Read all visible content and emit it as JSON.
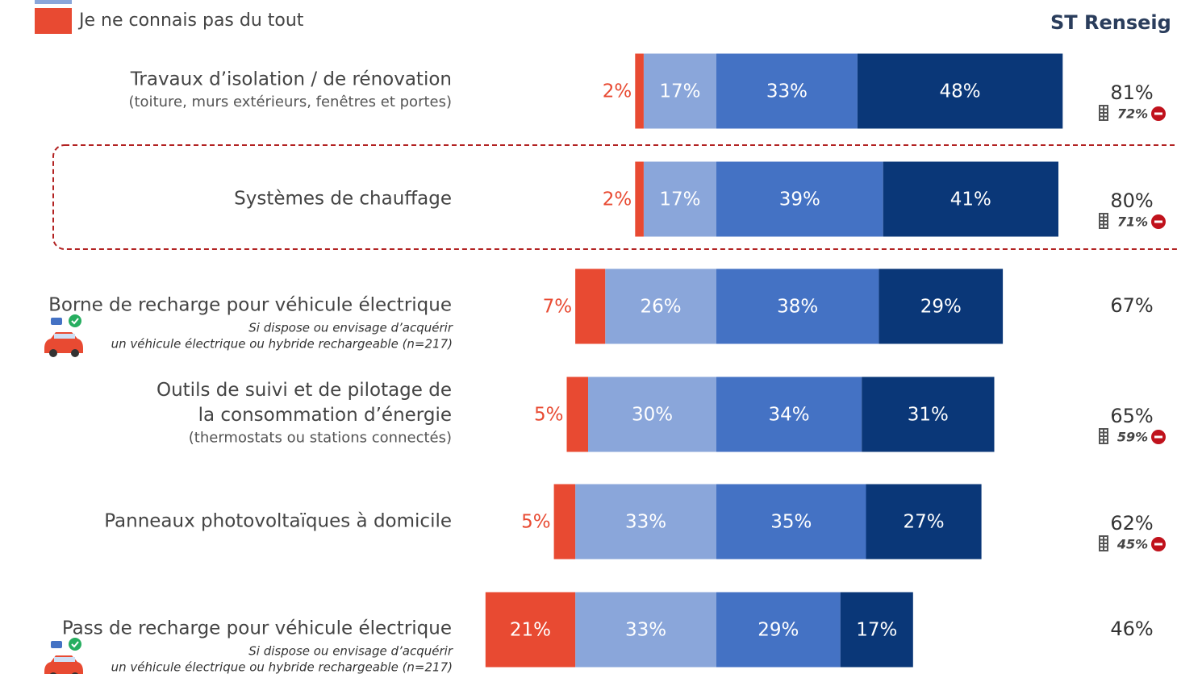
{
  "chart_data": {
    "type": "diverging_bar",
    "legend_entry": "Je ne connais pas du tout",
    "right_header": "ST Renseig",
    "categories": [
      [
        "Travaux d’isolation / de rénovation"
      ],
      [
        "Systèmes de chauffage"
      ],
      [
        "Borne de recharge pour véhicule électrique"
      ],
      [
        "Outils de suivi et de pilotage de",
        "la consommation d’énergie"
      ],
      [
        "Panneaux photovoltaïques à domicile"
      ],
      [
        "Pass de recharge pour véhicule électrique"
      ]
    ],
    "category_subtitles": [
      "(toiture, murs extérieurs, fenêtres et portes)",
      null,
      null,
      "(thermostats ou stations connectés)",
      null,
      null
    ],
    "category_notes": [
      null,
      null,
      [
        "Si dispose ou envisage d’acquérir",
        "un véhicule électrique ou hybride rechargeable (n=217)"
      ],
      null,
      null,
      [
        "Si dispose ou envisage d’acquérir",
        "un véhicule électrique ou hybride rechargeable (n=217)"
      ]
    ],
    "highlighted_row": 1,
    "series": [
      {
        "name": "Je ne connais pas du tout",
        "color": "#e84a32",
        "side": "left",
        "values": [
          2,
          2,
          7,
          5,
          5,
          21
        ],
        "value_labels": [
          "2%",
          "2%",
          "7%",
          "5%",
          "5%",
          "21%"
        ]
      },
      {
        "color": "#8aa6da",
        "side": "left",
        "values": [
          17,
          17,
          26,
          30,
          33,
          33
        ],
        "value_labels": [
          "17%",
          "17%",
          "26%",
          "30%",
          "33%",
          "33%"
        ]
      },
      {
        "color": "#4472c4",
        "side": "right",
        "values": [
          33,
          39,
          38,
          34,
          35,
          29
        ],
        "value_labels": [
          "33%",
          "39%",
          "38%",
          "34%",
          "35%",
          "29%"
        ]
      },
      {
        "color": "#0a3778",
        "side": "right",
        "values": [
          48,
          41,
          29,
          31,
          27,
          17
        ],
        "value_labels": [
          "48%",
          "41%",
          "29%",
          "31%",
          "27%",
          "17%"
        ]
      }
    ],
    "totals": [
      81,
      80,
      67,
      65,
      62,
      46
    ],
    "total_labels": [
      "81%",
      "80%",
      "67%",
      "65%",
      "62%",
      "46%"
    ],
    "sub_totals": [
      72,
      71,
      null,
      59,
      45,
      null
    ],
    "sub_total_labels": [
      "72%",
      "71%",
      null,
      "59%",
      "45%",
      null
    ]
  }
}
